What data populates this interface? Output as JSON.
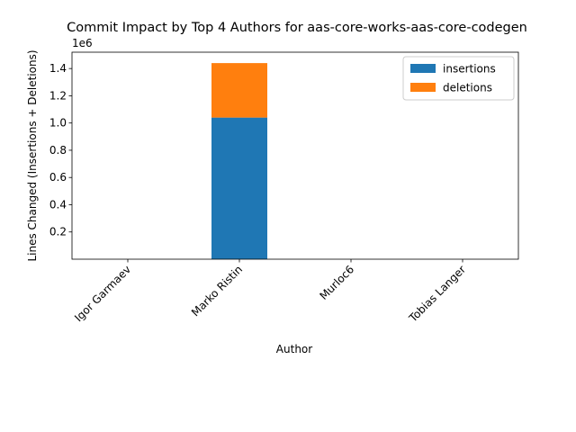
{
  "chart_data": {
    "type": "bar",
    "stacked": true,
    "title": "Commit Impact by Top 4 Authors for aas-core-works-aas-core-codegen",
    "xlabel": "Author",
    "ylabel": "Lines Changed (Insertions + Deletions)",
    "y_offset_text": "1e6",
    "categories": [
      "Igor Garmaev",
      "Marko Ristin",
      "Murloc6",
      "Tobias Langer"
    ],
    "series": [
      {
        "name": "insertions",
        "color": "#1f77b4",
        "values": [
          0.0,
          1.04,
          0.0,
          0.0
        ]
      },
      {
        "name": "deletions",
        "color": "#ff7f0e",
        "values": [
          0.0,
          0.4,
          0.0,
          0.0
        ]
      }
    ],
    "ylim": [
      0.0,
      1.52
    ],
    "yticks": [
      0.2,
      0.4,
      0.6,
      0.8,
      1.0,
      1.2,
      1.4
    ],
    "ytick_labels": [
      "0.2",
      "0.4",
      "0.6",
      "0.8",
      "1.0",
      "1.2",
      "1.4"
    ],
    "grid": false,
    "legend_position": "top-right"
  }
}
